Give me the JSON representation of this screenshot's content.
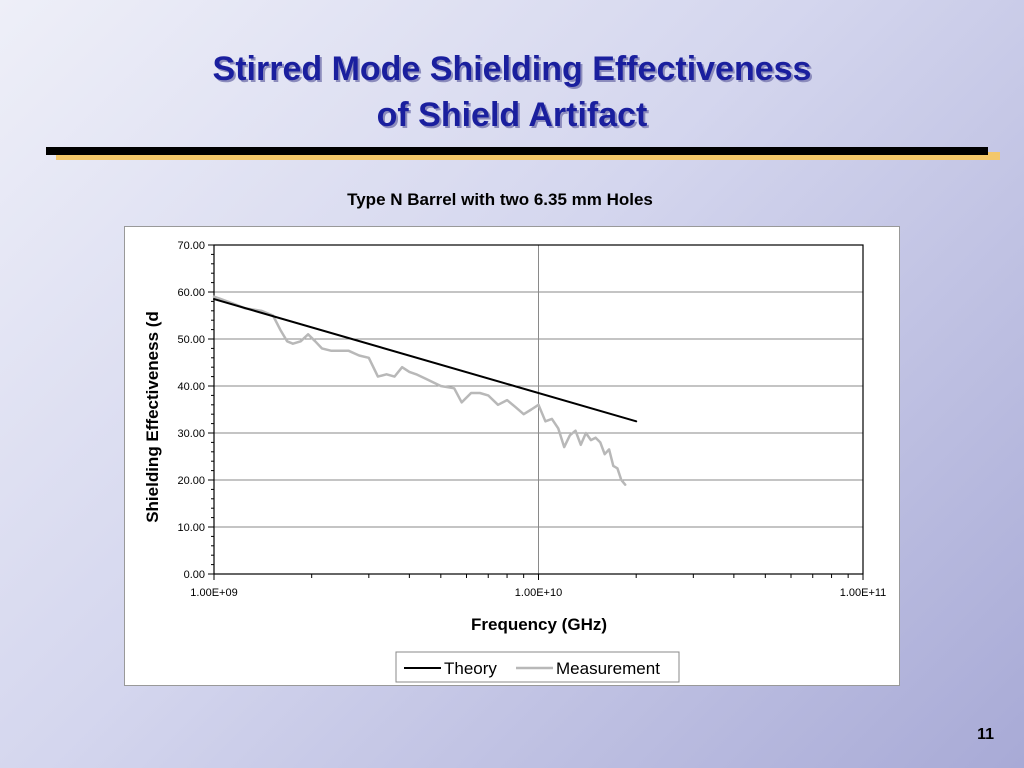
{
  "slide": {
    "title_line1": "Stirred Mode Shielding Effectiveness",
    "title_line2": "of Shield Artifact",
    "page_number": "11"
  },
  "chart_data": {
    "type": "line",
    "title": "Type N Barrel with two 6.35 mm Holes",
    "xlabel": "Frequency (GHz)",
    "ylabel": "Shielding Effectiveness (d",
    "xscale": "log",
    "xlim": [
      1000000000,
      100000000000
    ],
    "ylim": [
      0,
      70
    ],
    "x_tick_labels": [
      "1.00E+09",
      "1.00E+10",
      "1.00E+11"
    ],
    "y_tick_labels": [
      "0.00",
      "10.00",
      "20.00",
      "30.00",
      "40.00",
      "50.00",
      "60.00",
      "70.00"
    ],
    "grid": true,
    "legend_position": "bottom",
    "series": [
      {
        "name": "Theory",
        "color": "#000000",
        "x": [
          1000000000,
          20000000000
        ],
        "y": [
          58.5,
          32.5
        ]
      },
      {
        "name": "Measurement",
        "color": "#b8b8b8",
        "x": [
          1000000000,
          1050000000,
          1150000000,
          1250000000,
          1400000000,
          1520000000,
          1600000000,
          1680000000,
          1750000000,
          1850000000,
          1950000000,
          2050000000,
          2150000000,
          2300000000,
          2450000000,
          2600000000,
          2800000000,
          3000000000,
          3200000000,
          3400000000,
          3600000000,
          3800000000,
          4000000000,
          4200000000,
          4500000000,
          5000000000,
          5500000000,
          5800000000,
          6200000000,
          6600000000,
          7000000000,
          7500000000,
          8000000000,
          8500000000,
          9000000000,
          9500000000,
          10000000000,
          10500000000,
          11000000000,
          11500000000,
          12000000000,
          12500000000,
          13000000000,
          13500000000,
          14000000000,
          14500000000,
          15000000000,
          15500000000,
          16000000000,
          16500000000,
          17000000000,
          17500000000,
          18000000000,
          18500000000
        ],
        "y": [
          59,
          58.5,
          57.5,
          56.5,
          56,
          55,
          52,
          49.5,
          49,
          49.5,
          51,
          49.5,
          48,
          47.5,
          47.5,
          47.5,
          46.5,
          46,
          42,
          42.5,
          42,
          44,
          43,
          42.5,
          41.5,
          40,
          39.5,
          36.5,
          38.5,
          38.5,
          38,
          36,
          37,
          35.5,
          34,
          35,
          36,
          32.5,
          33,
          31,
          27,
          29.5,
          30.5,
          27.5,
          30,
          28.5,
          29,
          28,
          25.5,
          26.5,
          23,
          22.5,
          20,
          19
        ]
      }
    ]
  }
}
